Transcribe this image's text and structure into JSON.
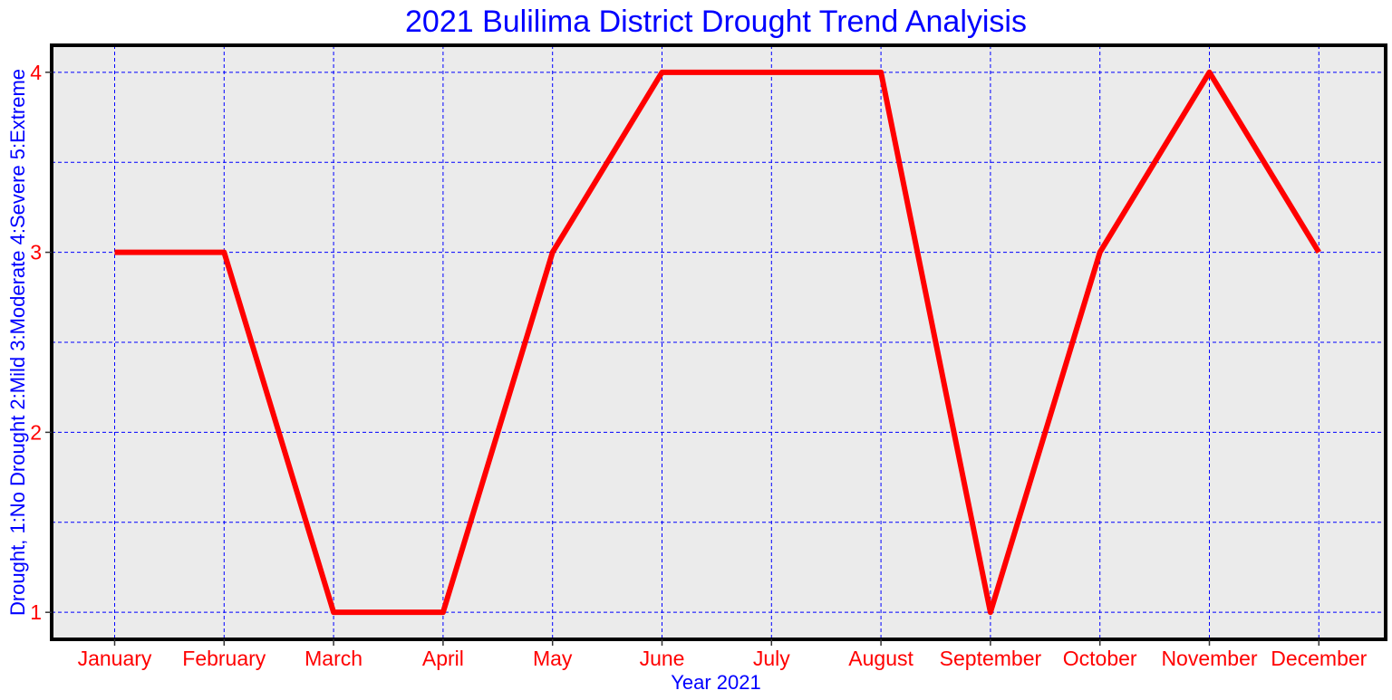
{
  "chart_data": {
    "type": "line",
    "title": "2021 Bulilima District Drought Trend Analyisis",
    "xlabel": "Year 2021",
    "ylabel": "Drought, 1:No Drought 2:Mild 3:Moderate 4:Severe 5:Extreme",
    "categories": [
      "January",
      "February",
      "March",
      "April",
      "May",
      "June",
      "July",
      "August",
      "September",
      "October",
      "November",
      "December"
    ],
    "series": [
      {
        "values": [
          3,
          3,
          1,
          1,
          3,
          4,
          4,
          4,
          1,
          3,
          4,
          3
        ]
      }
    ],
    "ylim": [
      0.85,
      4.15
    ],
    "yticks": [
      1,
      2,
      3,
      4
    ],
    "ygrid": [
      1,
      1.5,
      2,
      2.5,
      3,
      3.5,
      4
    ],
    "grid": true,
    "colors": {
      "title": "#0000ff",
      "axis_label": "#0000ff",
      "tick_label": "#ff0000",
      "line": "#ff0000",
      "grid": "#0000ff",
      "plot_background": "#ebebeb",
      "frame": "#000000"
    }
  }
}
